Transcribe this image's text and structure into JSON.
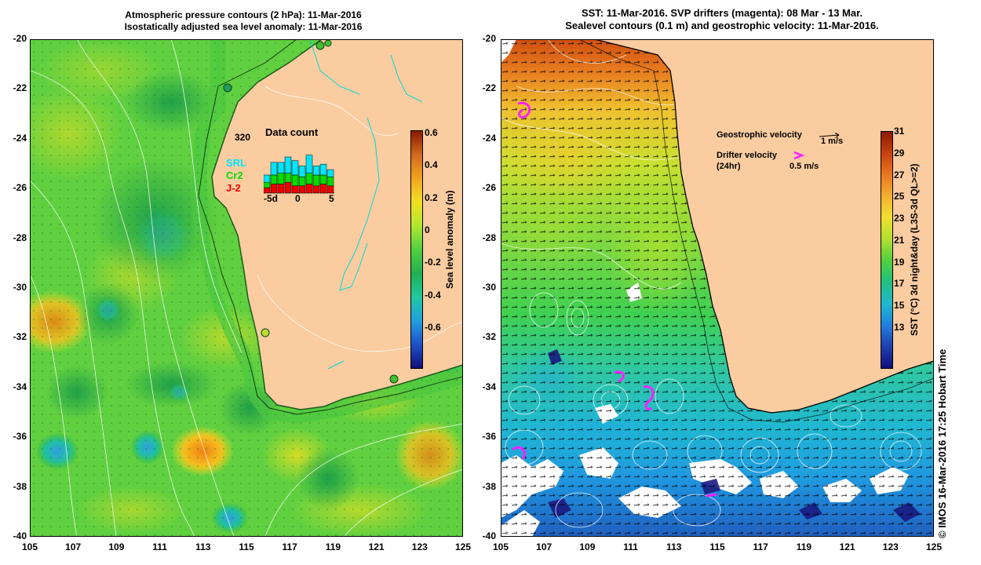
{
  "left_panel": {
    "title_line1": "Atmospheric pressure contours (2 hPa): 11-Mar-2016",
    "title_line2": "Isostatically adjusted sea level anomaly: 11-Mar-2016",
    "y_ticks": [
      "-20",
      "-22",
      "-24",
      "-26",
      "-28",
      "-30",
      "-32",
      "-34",
      "-36",
      "-38",
      "-40"
    ],
    "x_ticks": [
      "105",
      "107",
      "109",
      "111",
      "113",
      "115",
      "117",
      "119",
      "121",
      "123",
      "125"
    ],
    "colorbar": {
      "label": "Sea level anomaly (m)",
      "ticks": [
        "0.6",
        "0.4",
        "0.2",
        "0",
        "-0.2",
        "-0.4",
        "-0.6"
      ],
      "colors": [
        "#8b1a00",
        "#d2691e",
        "#f4a420",
        "#f0e020",
        "#b0e830",
        "#50d040",
        "#20b050",
        "#20c8a0",
        "#20a0e0",
        "#2050c8",
        "#10107a"
      ]
    },
    "inset": {
      "count": "320",
      "title": "Data count",
      "legend": [
        "SRL",
        "Cr2",
        "J-2"
      ],
      "legend_colors": [
        "#00e5ff",
        "#00dd00",
        "#ee0000"
      ],
      "x_ticks": [
        "-5d",
        "0",
        "5"
      ],
      "bars": [
        {
          "srl": 4,
          "cr2": 3,
          "j2": 3
        },
        {
          "srl": 7,
          "cr2": 5,
          "j2": 5
        },
        {
          "srl": 6,
          "cr2": 6,
          "j2": 5
        },
        {
          "srl": 9,
          "cr2": 5,
          "j2": 6
        },
        {
          "srl": 8,
          "cr2": 6,
          "j2": 4
        },
        {
          "srl": 6,
          "cr2": 5,
          "j2": 4
        },
        {
          "srl": 10,
          "cr2": 6,
          "j2": 5
        },
        {
          "srl": 5,
          "cr2": 6,
          "j2": 4
        },
        {
          "srl": 6,
          "cr2": 5,
          "j2": 5
        },
        {
          "srl": 4,
          "cr2": 5,
          "j2": 4
        }
      ]
    }
  },
  "right_panel": {
    "title_line1": "SST: 11-Mar-2016. SVP drifters (magenta): 08 Mar - 13 Mar.",
    "title_line2": "Sealevel contours (0.1 m) and geostrophic velocity: 11-Mar-2016.",
    "y_ticks": [
      "-20",
      "-22",
      "-24",
      "-26",
      "-28",
      "-30",
      "-32",
      "-34",
      "-36",
      "-38",
      "-40"
    ],
    "x_ticks": [
      "105",
      "107",
      "109",
      "111",
      "113",
      "115",
      "117",
      "119",
      "121",
      "123",
      "125"
    ],
    "legend_geostrophic": "Geostrophic velocity",
    "legend_geostrophic_scale": "1 m/s",
    "legend_drifter": "Drifter velocity",
    "legend_drifter_period": "(24hr)",
    "legend_drifter_scale": "0.5 m/s",
    "colorbar": {
      "label": "SST (°C) 3d night&day (L3S-3d QL>=2)",
      "ticks": [
        "31",
        "29",
        "27",
        "25",
        "23",
        "21",
        "19",
        "17",
        "15",
        "13"
      ],
      "colors": [
        "#8b1a00",
        "#c84010",
        "#e87820",
        "#f4b030",
        "#f0e030",
        "#b0e030",
        "#50d040",
        "#20c080",
        "#20b8d0",
        "#2080e0",
        "#2040b0",
        "#10107a"
      ]
    }
  },
  "credit": "© IMOS 16-Mar-2016 17:25 Hobart Time"
}
